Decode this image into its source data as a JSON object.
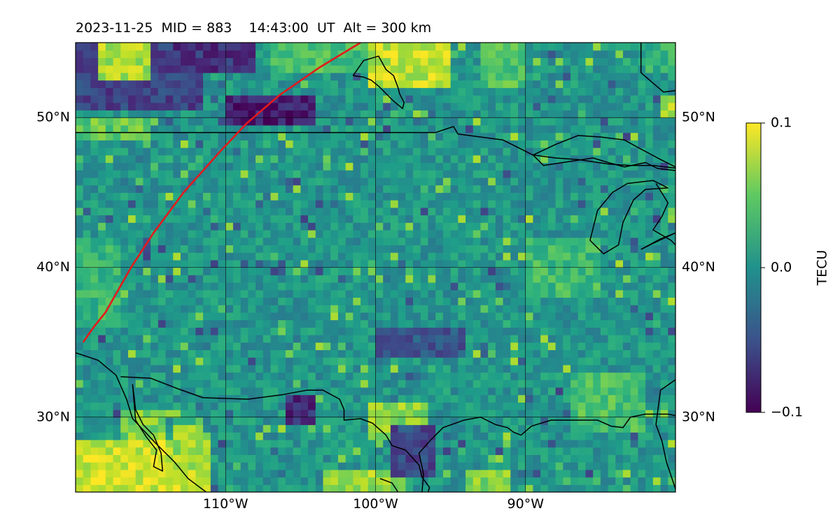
{
  "title": "2023-11-25  MID = 883    14:43:00  UT  Alt = 300 km",
  "chart_data": {
    "type": "heatmap",
    "title": "2023-11-25  MID = 883    14:43:00  UT  Alt = 300 km",
    "projection": "plate-carree",
    "xlim": [
      -130,
      -90
    ],
    "ylim": [
      25,
      55
    ],
    "x_ticks": [
      {
        "value": -120,
        "label": "110°W"
      },
      {
        "value": -110,
        "label": "100°W"
      },
      {
        "value": -100,
        "label": "90°W"
      }
    ],
    "y_ticks": [
      {
        "value": 30,
        "label": "30°N"
      },
      {
        "value": 40,
        "label": "40°N"
      },
      {
        "value": 50,
        "label": "50°N"
      }
    ],
    "grid": true,
    "colormap": "viridis",
    "colorbar": {
      "label": "TECU",
      "min": -0.1,
      "max": 0.1,
      "ticks": [
        {
          "value": 0.1,
          "label": "0.1"
        },
        {
          "value": 0.0,
          "label": "0.0"
        },
        {
          "value": -0.1,
          "label": "−0.1"
        }
      ]
    },
    "track": {
      "color": "#e31a1c",
      "points": [
        [
          -129.5,
          35
        ],
        [
          -128.8,
          36
        ],
        [
          -128,
          37
        ],
        [
          -126.3,
          40
        ],
        [
          -124.8,
          42.3
        ],
        [
          -122.8,
          45
        ],
        [
          -120.4,
          47.7
        ],
        [
          -118.6,
          49.6
        ],
        [
          -116.4,
          51.5
        ],
        [
          -113.8,
          53.3
        ],
        [
          -112,
          54.4
        ],
        [
          -111,
          55
        ]
      ]
    },
    "regions": [
      {
        "lon": [
          -130,
          -121
        ],
        "lat": [
          25,
          28.5
        ],
        "value": 0.085
      },
      {
        "lon": [
          -127,
          -124
        ],
        "lat": [
          28.5,
          30.5
        ],
        "value": 0.06
      },
      {
        "lon": [
          -123.5,
          -121.5
        ],
        "lat": [
          26.5,
          29.5
        ],
        "value": 0.07
      },
      {
        "lon": [
          -113.5,
          -108
        ],
        "lat": [
          25,
          26.5
        ],
        "value": 0.07
      },
      {
        "lon": [
          -110.5,
          -106.5
        ],
        "lat": [
          28.5,
          30.8
        ],
        "value": 0.065
      },
      {
        "lon": [
          -104,
          -101
        ],
        "lat": [
          25,
          26.5
        ],
        "value": 0.06
      },
      {
        "lon": [
          -116,
          -114
        ],
        "lat": [
          29.5,
          31.5
        ],
        "value": -0.075
      },
      {
        "lon": [
          -109,
          -106
        ],
        "lat": [
          26,
          29.5
        ],
        "value": -0.055
      },
      {
        "lon": [
          -130,
          -121.5
        ],
        "lat": [
          50.5,
          55
        ],
        "value": -0.06
      },
      {
        "lon": [
          -128.5,
          -125
        ],
        "lat": [
          52.5,
          55
        ],
        "value": 0.075
      },
      {
        "lon": [
          -123.5,
          -118
        ],
        "lat": [
          53,
          55
        ],
        "value": -0.07
      },
      {
        "lon": [
          -120,
          -114
        ],
        "lat": [
          49.3,
          51.5
        ],
        "value": -0.085
      },
      {
        "lon": [
          -117,
          -109.5
        ],
        "lat": [
          53,
          55
        ],
        "value": 0.04
      },
      {
        "lon": [
          -110.5,
          -105
        ],
        "lat": [
          52,
          55
        ],
        "value": 0.08
      },
      {
        "lon": [
          -103,
          -100
        ],
        "lat": [
          52,
          55
        ],
        "value": 0.045
      },
      {
        "lon": [
          -92,
          -90
        ],
        "lat": [
          53,
          55
        ],
        "value": 0.03
      },
      {
        "lon": [
          -90.8,
          -90
        ],
        "lat": [
          50,
          51.5
        ],
        "value": 0.075
      },
      {
        "lon": [
          -130,
          -125
        ],
        "lat": [
          48.5,
          50
        ],
        "value": 0.05
      },
      {
        "lon": [
          -110,
          -104
        ],
        "lat": [
          34,
          36
        ],
        "value": -0.045
      },
      {
        "lon": [
          -100,
          -95
        ],
        "lat": [
          38,
          42
        ],
        "value": 0.035
      },
      {
        "lon": [
          -97,
          -92
        ],
        "lat": [
          29,
          33
        ],
        "value": 0.04
      },
      {
        "lon": [
          -130,
          -127
        ],
        "lat": [
          36,
          42
        ],
        "value": 0.03
      }
    ],
    "outlines": [
      {
        "name": "us-canada-border",
        "points": [
          [
            -130,
            49
          ],
          [
            -106,
            49
          ],
          [
            -104.8,
            49.4
          ],
          [
            -104.5,
            48.9
          ],
          [
            -101.5,
            48.5
          ],
          [
            -99.5,
            47.5
          ],
          [
            -98.8,
            46.8
          ],
          [
            -97.5,
            47
          ],
          [
            -95.5,
            47.3
          ],
          [
            -94.5,
            47
          ],
          [
            -93.4,
            46.7
          ],
          [
            -92,
            47
          ],
          [
            -91.2,
            46.6
          ],
          [
            -89.5,
            46.4
          ],
          [
            -88.5,
            46
          ],
          [
            -87.7,
            45.5
          ]
        ]
      },
      {
        "name": "lake-superior",
        "points": [
          [
            -99.5,
            47.5
          ],
          [
            -98,
            48.2
          ],
          [
            -96.5,
            48.8
          ],
          [
            -95,
            48.7
          ],
          [
            -93.4,
            48.5
          ],
          [
            -92.5,
            48
          ],
          [
            -91,
            47.2
          ],
          [
            -89.8,
            46.6
          ],
          [
            -91.5,
            46.8
          ],
          [
            -93,
            46.8
          ],
          [
            -94.5,
            46.9
          ],
          [
            -96.5,
            47.2
          ],
          [
            -98,
            47.3
          ],
          [
            -99.5,
            47.5
          ]
        ]
      },
      {
        "name": "lake-michigan",
        "points": [
          [
            -90.5,
            45.3
          ],
          [
            -91.5,
            45.8
          ],
          [
            -93.2,
            45.6
          ],
          [
            -94.2,
            45
          ],
          [
            -95.2,
            43.8
          ],
          [
            -95.7,
            41.8
          ],
          [
            -94.8,
            40.9
          ],
          [
            -93.8,
            41.5
          ],
          [
            -93.5,
            43
          ],
          [
            -92.8,
            44.5
          ],
          [
            -92,
            45.2
          ],
          [
            -90.5,
            45.3
          ]
        ]
      },
      {
        "name": "lake-huron",
        "points": [
          [
            -91.3,
            45.6
          ],
          [
            -90.5,
            44.3
          ],
          [
            -90.9,
            43.4
          ],
          [
            -91.5,
            42.5
          ],
          [
            -90.3,
            41.8
          ],
          [
            -90,
            41.5
          ]
        ]
      },
      {
        "name": "lake-erie",
        "points": [
          [
            -92.3,
            41.2
          ],
          [
            -91,
            41.9
          ],
          [
            -90,
            42.3
          ],
          [
            -91.5,
            41.6
          ],
          [
            -92.3,
            41.2
          ]
        ]
      },
      {
        "name": "hudson-bay",
        "points": [
          [
            -111.5,
            52.8
          ],
          [
            -110.8,
            53.8
          ],
          [
            -109.8,
            54.1
          ],
          [
            -109.3,
            53.2
          ],
          [
            -108.8,
            52.8
          ],
          [
            -108.5,
            52
          ],
          [
            -108.4,
            51.6
          ],
          [
            -108.1,
            51
          ],
          [
            -108.2,
            50.6
          ],
          [
            -108.8,
            51.1
          ],
          [
            -109.3,
            51.6
          ],
          [
            -109.8,
            52.1
          ],
          [
            -110.3,
            52.5
          ],
          [
            -110.8,
            52.7
          ],
          [
            -111.5,
            52.8
          ]
        ]
      },
      {
        "name": "labrador-coast",
        "points": [
          [
            -92.3,
            55
          ],
          [
            -92.3,
            53
          ],
          [
            -91.5,
            52.3
          ],
          [
            -90.8,
            51.7
          ],
          [
            -90,
            51.8
          ]
        ]
      },
      {
        "name": "mexico-coast-west",
        "points": [
          [
            -130,
            34.3
          ],
          [
            -128.5,
            33.8
          ],
          [
            -127.3,
            32.8
          ],
          [
            -126.6,
            31.2
          ],
          [
            -126.2,
            29.9
          ],
          [
            -124.7,
            28.3
          ],
          [
            -123.4,
            27
          ],
          [
            -122.5,
            25.9
          ],
          [
            -121.3,
            25
          ]
        ]
      },
      {
        "name": "mexico-border",
        "points": [
          [
            -127,
            32.7
          ],
          [
            -125,
            32.6
          ],
          [
            -123.2,
            31.9
          ],
          [
            -121.5,
            31.3
          ],
          [
            -118.5,
            31.2
          ],
          [
            -116.2,
            31.5
          ],
          [
            -114.6,
            31.8
          ],
          [
            -113.5,
            31.8
          ],
          [
            -112.4,
            31.2
          ],
          [
            -112.1,
            30.5
          ],
          [
            -112.1,
            29.8
          ],
          [
            -111,
            29.9
          ],
          [
            -110.2,
            29.6
          ],
          [
            -109.3,
            28.8
          ],
          [
            -108.9,
            28.1
          ],
          [
            -108,
            27.8
          ],
          [
            -107.1,
            26.8
          ],
          [
            -106.9,
            26
          ],
          [
            -106.4,
            25.3
          ],
          [
            -106.5,
            25
          ]
        ]
      },
      {
        "name": "gulf-coast",
        "points": [
          [
            -106.9,
            25
          ],
          [
            -106.8,
            26.2
          ],
          [
            -107.1,
            27.6
          ],
          [
            -106.3,
            28.5
          ],
          [
            -105.5,
            29.3
          ],
          [
            -104.1,
            29.8
          ],
          [
            -103,
            30
          ],
          [
            -102,
            29.5
          ],
          [
            -101.2,
            29.3
          ],
          [
            -100.8,
            29
          ],
          [
            -100.3,
            28.8
          ],
          [
            -99.6,
            29.4
          ],
          [
            -98.3,
            29.8
          ],
          [
            -96.8,
            29.8
          ],
          [
            -95.2,
            29.8
          ],
          [
            -94.3,
            29.4
          ],
          [
            -93.5,
            29.3
          ],
          [
            -93,
            30
          ],
          [
            -92,
            30.2
          ],
          [
            -90.5,
            30.2
          ],
          [
            -90,
            30.1
          ]
        ]
      },
      {
        "name": "florida-fragment",
        "points": [
          [
            -90,
            32.5
          ],
          [
            -91,
            31.8
          ],
          [
            -91.3,
            29.5
          ],
          [
            -90.9,
            28.4
          ],
          [
            -90.6,
            27
          ],
          [
            -90.1,
            25.5
          ],
          [
            -90,
            25.2
          ]
        ]
      },
      {
        "name": "mexico-gulf-coast",
        "points": [
          [
            -108.5,
            25
          ],
          [
            -108.9,
            25.6
          ],
          [
            -109.7,
            25.9
          ]
        ]
      },
      {
        "name": "baja-peninsula",
        "points": [
          [
            -126.2,
            32.2
          ],
          [
            -126,
            30.5
          ],
          [
            -125.5,
            29.5
          ],
          [
            -124.8,
            28.8
          ],
          [
            -124.3,
            27.6
          ],
          [
            -124.2,
            26.4
          ],
          [
            -124.8,
            26.7
          ],
          [
            -124.6,
            27.8
          ],
          [
            -125.3,
            28.7
          ],
          [
            -126,
            29.8
          ],
          [
            -126.2,
            32.2
          ]
        ]
      }
    ]
  }
}
